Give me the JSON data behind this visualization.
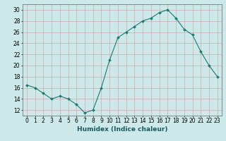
{
  "x": [
    0,
    1,
    2,
    3,
    4,
    5,
    6,
    7,
    8,
    9,
    10,
    11,
    12,
    13,
    14,
    15,
    16,
    17,
    18,
    19,
    20,
    21,
    22,
    23
  ],
  "y": [
    16.5,
    16.0,
    15.0,
    14.0,
    14.5,
    14.0,
    13.0,
    11.5,
    12.0,
    16.0,
    21.0,
    25.0,
    26.0,
    27.0,
    28.0,
    28.5,
    29.5,
    30.0,
    28.5,
    26.5,
    25.5,
    22.5,
    20.0,
    18.0
  ],
  "line_color": "#1a7a6e",
  "marker": "D",
  "marker_size": 2.0,
  "bg_color": "#cce8e8",
  "grid_color": "#b8d0d0",
  "xlabel": "Humidex (Indice chaleur)",
  "xlim": [
    -0.5,
    23.5
  ],
  "ylim": [
    11,
    31
  ],
  "yticks": [
    12,
    14,
    16,
    18,
    20,
    22,
    24,
    26,
    28,
    30
  ],
  "xticks": [
    0,
    1,
    2,
    3,
    4,
    5,
    6,
    7,
    8,
    9,
    10,
    11,
    12,
    13,
    14,
    15,
    16,
    17,
    18,
    19,
    20,
    21,
    22,
    23
  ],
  "label_fontsize": 6.5,
  "tick_fontsize": 5.5
}
